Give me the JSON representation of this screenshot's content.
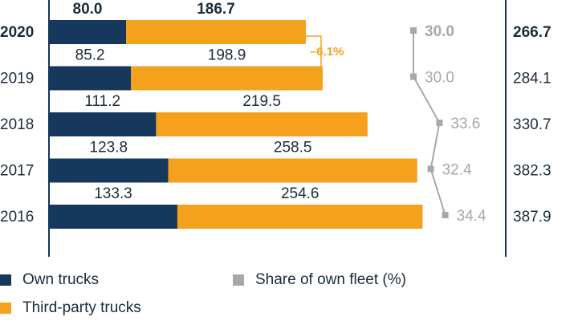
{
  "chart_data": {
    "type": "bar",
    "orientation": "horizontal",
    "stacked": true,
    "categories": [
      "2020",
      "2019",
      "2018",
      "2017",
      "2016"
    ],
    "highlight_category": "2020",
    "series": [
      {
        "name": "Own trucks",
        "color": "#15385c",
        "values": [
          80.0,
          85.2,
          111.2,
          123.8,
          133.3
        ]
      },
      {
        "name": "Third-party trucks",
        "color": "#f5a11e",
        "values": [
          186.7,
          198.9,
          219.5,
          258.5,
          254.6
        ]
      }
    ],
    "value_labels": {
      "own": [
        "80.0",
        "85.2",
        "111.2",
        "123.8",
        "133.3"
      ],
      "third": [
        "186.7",
        "198.9",
        "219.5",
        "258.5",
        "254.6"
      ]
    },
    "totals": {
      "values": [
        266.7,
        284.1,
        330.7,
        382.3,
        387.9
      ],
      "labels": [
        "266.7",
        "284.1",
        "330.7",
        "382.3",
        "387.9"
      ]
    },
    "share_series": {
      "name": "Share of own fleet (%)",
      "color": "#a8a8a8",
      "values": [
        30.0,
        30.0,
        33.6,
        32.4,
        34.4
      ],
      "labels": [
        "30.0",
        "30.0",
        "33.6",
        "32.4",
        "34.4"
      ]
    },
    "change_annotation": {
      "text": "–6.1%",
      "color": "#f5a11e"
    },
    "xlim": [
      0,
      400
    ]
  },
  "legend": [
    {
      "label": "Own trucks",
      "color": "#15385c"
    },
    {
      "label": "Third-party trucks",
      "color": "#f5a11e"
    },
    {
      "label": "Share of own fleet (%)",
      "color": "#a8a8a8"
    }
  ]
}
